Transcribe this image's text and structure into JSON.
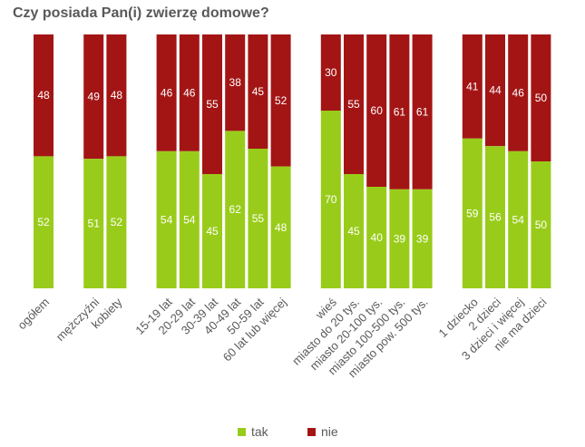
{
  "title": "Czy posiada Pan(i) zwierzę domowe?",
  "colors": {
    "tak": "#99cc1a",
    "nie": "#a31515",
    "value_label": "#ffffff",
    "category_label": "#595959"
  },
  "legend": [
    {
      "key": "tak",
      "label": "tak"
    },
    {
      "key": "nie",
      "label": "nie"
    }
  ],
  "chart_data": {
    "type": "bar",
    "stacked": true,
    "ylim": [
      0,
      100
    ],
    "grid": false,
    "legend_position": "bottom",
    "categories": [
      "ogółem",
      "mężczyźni",
      "kobiety",
      "15-19 lat",
      "20-29 lat",
      "30-39 lat",
      "40-49 lat",
      "50-59 lat",
      "60 lat lub więcej",
      "wieś",
      "miasto do 20 tys.",
      "miasto 20-100 tys.",
      "miasto 100-500 tys.",
      "miasto pow. 500 tys.",
      "1 dziecko",
      "2 dzieci",
      "3 dzieci i więcej",
      "nie ma dzieci"
    ],
    "groups": [
      1,
      2,
      6,
      5,
      4
    ],
    "series": [
      {
        "name": "tak",
        "values": [
          52,
          51,
          52,
          54,
          54,
          45,
          62,
          55,
          48,
          70,
          45,
          40,
          39,
          39,
          59,
          56,
          54,
          50
        ]
      },
      {
        "name": "nie",
        "values": [
          48,
          49,
          48,
          46,
          46,
          55,
          38,
          45,
          52,
          30,
          55,
          60,
          61,
          61,
          41,
          44,
          46,
          50
        ]
      }
    ]
  }
}
